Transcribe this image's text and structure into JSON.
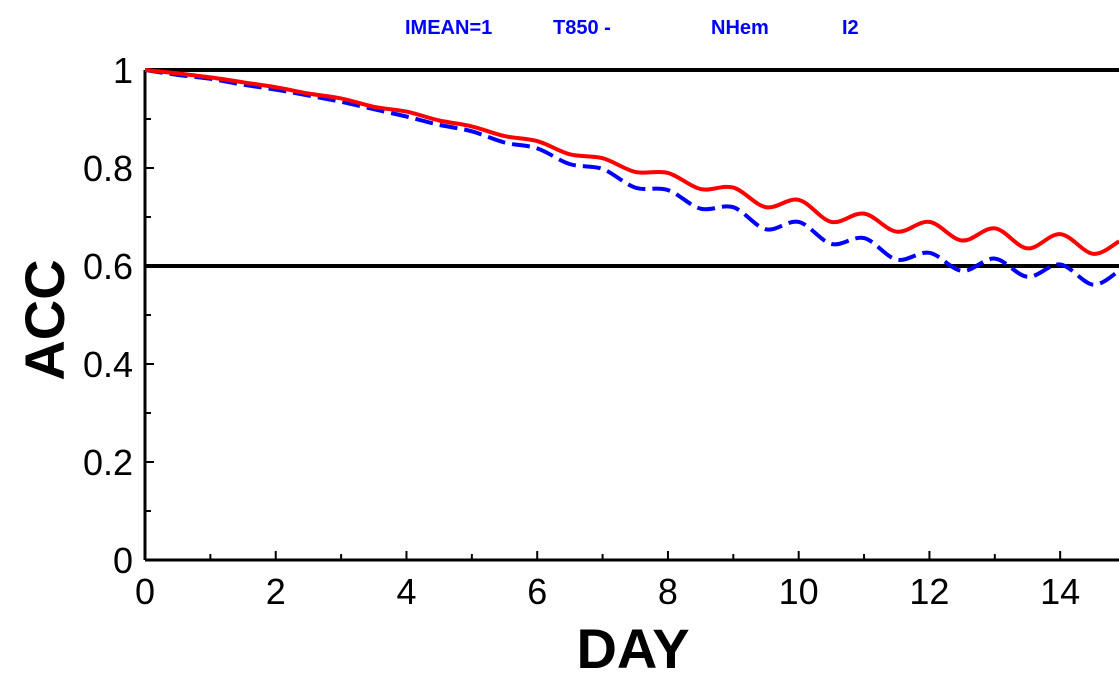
{
  "title_parts": [
    "IMEAN=1",
    "T850 -",
    "NHem",
    "I2"
  ],
  "colors": {
    "series_red": "#ff0000",
    "series_blue": "#0000ff",
    "axis": "#000000",
    "title": "#0000ff"
  },
  "chart_data": {
    "type": "line",
    "title": "IMEAN=1   T850 -   NHem   I2",
    "xlabel": "DAY",
    "ylabel": "ACC",
    "xlim": [
      0,
      14.9
    ],
    "ylim": [
      0,
      1
    ],
    "x_ticks": [
      "0",
      "2",
      "4",
      "6",
      "8",
      "10",
      "12",
      "14"
    ],
    "y_ticks": [
      "0",
      "0.2",
      "0.4",
      "0.6",
      "0.8",
      "1"
    ],
    "reference_lines": [
      {
        "axis": "y",
        "value": 1.0
      },
      {
        "axis": "y",
        "value": 0.6
      }
    ],
    "grid": false,
    "series": [
      {
        "color": "#ff0000",
        "style": "solid",
        "x": [
          0,
          0.5,
          1,
          1.5,
          2,
          2.5,
          3,
          3.5,
          4,
          4.5,
          5,
          5.5,
          6,
          6.5,
          7,
          7.5,
          8,
          8.5,
          9,
          9.5,
          10,
          10.5,
          11,
          11.5,
          12,
          12.5,
          13,
          13.5,
          14,
          14.5,
          14.9
        ],
        "y": [
          1.0,
          0.993,
          0.985,
          0.975,
          0.965,
          0.952,
          0.942,
          0.925,
          0.915,
          0.897,
          0.885,
          0.865,
          0.855,
          0.828,
          0.82,
          0.792,
          0.79,
          0.757,
          0.76,
          0.72,
          0.735,
          0.69,
          0.707,
          0.67,
          0.69,
          0.652,
          0.677,
          0.636,
          0.665,
          0.625,
          0.65
        ]
      },
      {
        "color": "#0000ff",
        "style": "dashed",
        "x": [
          0,
          0.5,
          1,
          1.5,
          2,
          2.5,
          3,
          3.5,
          4,
          4.5,
          5,
          5.5,
          6,
          6.5,
          7,
          7.5,
          8,
          8.5,
          9,
          9.5,
          10,
          10.5,
          11,
          11.5,
          12,
          12.5,
          13,
          13.5,
          14,
          14.5,
          14.9
        ],
        "y": [
          1.0,
          0.99,
          0.982,
          0.97,
          0.96,
          0.948,
          0.935,
          0.92,
          0.905,
          0.888,
          0.875,
          0.852,
          0.84,
          0.808,
          0.798,
          0.76,
          0.755,
          0.717,
          0.72,
          0.675,
          0.69,
          0.645,
          0.657,
          0.613,
          0.627,
          0.59,
          0.615,
          0.578,
          0.603,
          0.562,
          0.59
        ]
      }
    ]
  }
}
